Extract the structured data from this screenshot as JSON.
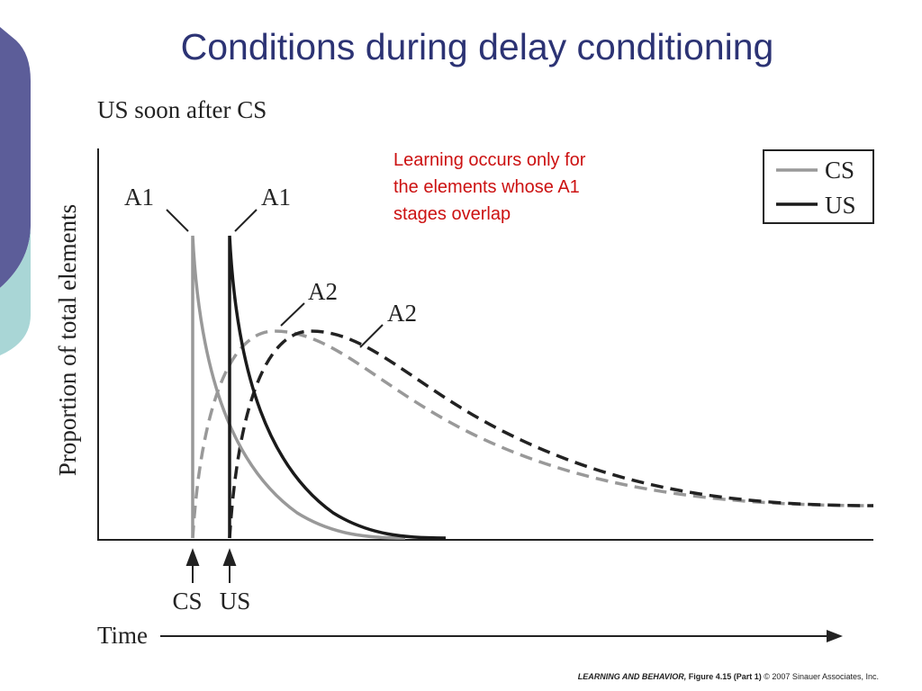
{
  "title": "Conditions during delay conditioning",
  "figure": {
    "subtitle": "US soon after CS",
    "y_axis_label": "Proportion of total elements",
    "curve_labels": [
      "A1",
      "A1",
      "A2",
      "A2"
    ],
    "note_lines": [
      "Learning occurs only for",
      "the elements whose A1",
      "stages overlap"
    ],
    "legend": [
      "CS",
      "US"
    ],
    "onset_labels": [
      "CS",
      "US"
    ],
    "x_axis_label": "Time"
  },
  "caption": {
    "book": "LEARNING AND BEHAVIOR,",
    "figure": "Figure 4.15 (Part 1)",
    "copyright": "© 2007 Sinauer Associates, Inc."
  }
}
